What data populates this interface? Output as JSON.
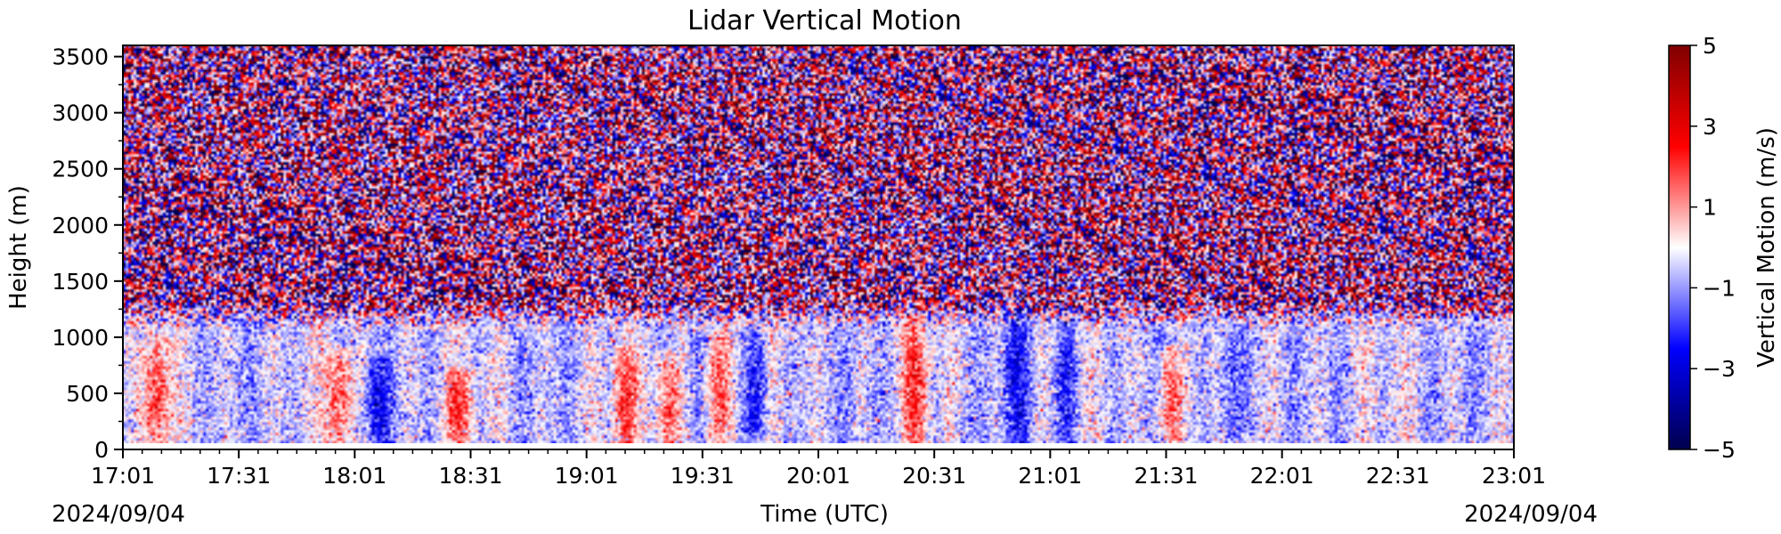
{
  "chart_data": {
    "type": "heatmap",
    "title": "Lidar Vertical Motion",
    "xlabel": "Time (UTC)",
    "ylabel": "Height (m)",
    "x_start_date": "2024/09/04",
    "x_end_date": "2024/09/04",
    "x_ticks": [
      "17:01",
      "17:31",
      "18:01",
      "18:31",
      "19:01",
      "19:31",
      "20:01",
      "20:31",
      "21:01",
      "21:31",
      "22:01",
      "22:31",
      "23:01"
    ],
    "x_range": [
      "17:01",
      "23:01"
    ],
    "y_ticks": [
      0,
      500,
      1000,
      1500,
      2000,
      2500,
      3000,
      3500
    ],
    "ylim": [
      0,
      3600
    ],
    "colorbar": {
      "label": "Vertical Motion (m/s)",
      "ticks": [
        5,
        3,
        1,
        -1,
        -3,
        -5
      ],
      "range": [
        -5,
        5
      ],
      "colormap": "seismic",
      "colors": [
        "#00004d",
        "#0000ff",
        "#ffffff",
        "#ff0000",
        "#800000"
      ]
    },
    "features": {
      "noise_above_height": 1300,
      "updrafts": [
        {
          "time": "17:10",
          "height_top": 1000
        },
        {
          "time": "17:57",
          "height_top": 900
        },
        {
          "time": "18:28",
          "height_top": 700
        },
        {
          "time": "19:11",
          "height_top": 900
        },
        {
          "time": "19:22",
          "height_top": 850
        },
        {
          "time": "19:35",
          "height_top": 1100
        },
        {
          "time": "20:26",
          "height_top": 1200
        },
        {
          "time": "21:32",
          "height_top": 900
        }
      ],
      "downdrafts": [
        {
          "time": "18:07",
          "height_top": 800
        },
        {
          "time": "19:45",
          "height_top": 1000
        },
        {
          "time": "20:52",
          "height_top": 1400
        },
        {
          "time": "21:05",
          "height_top": 1100
        },
        {
          "time": "21:48",
          "height_top": 1300
        }
      ]
    }
  }
}
